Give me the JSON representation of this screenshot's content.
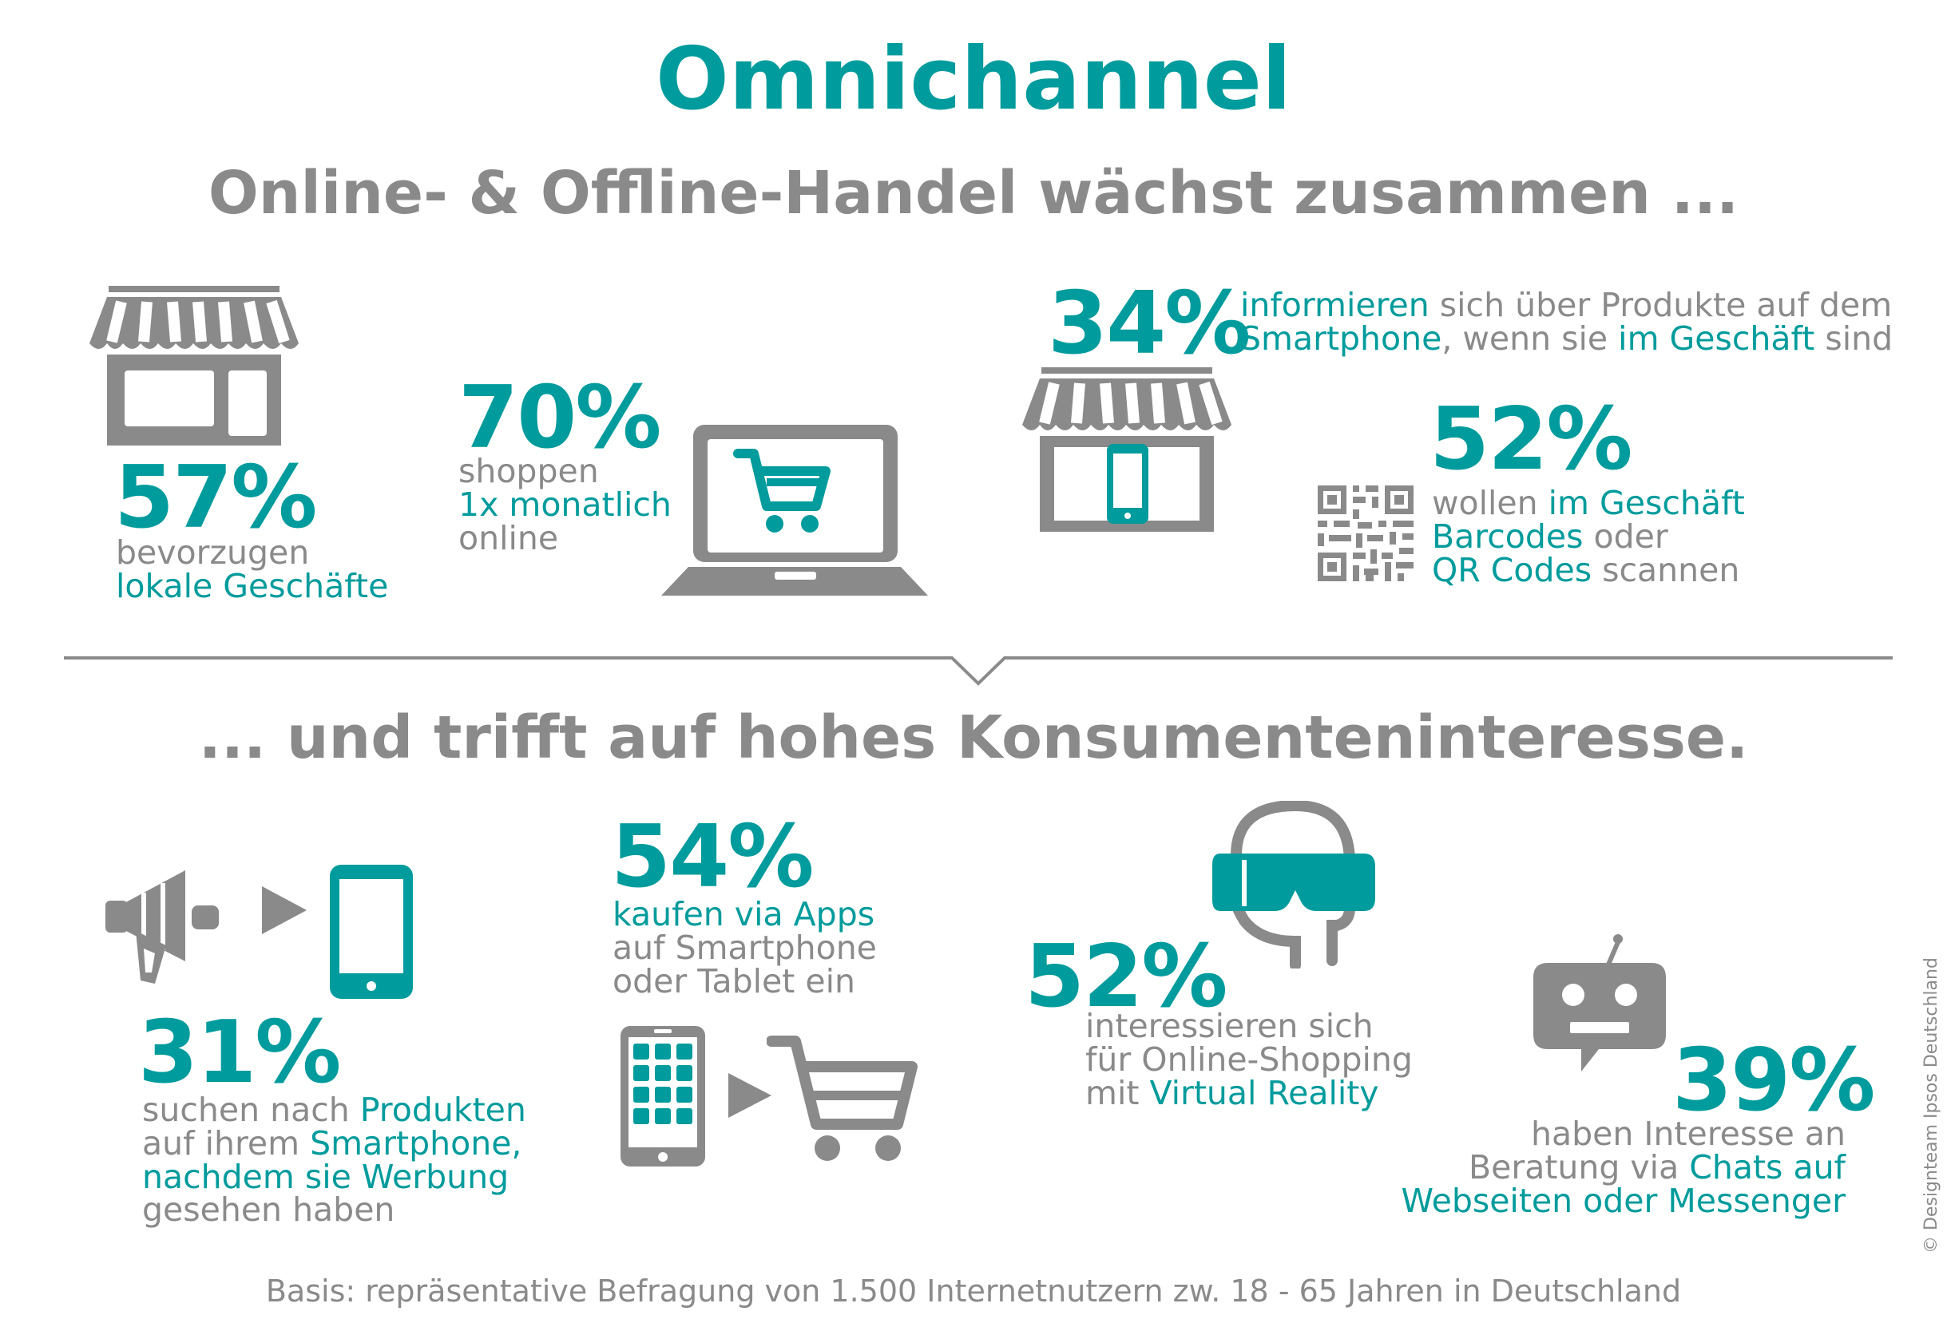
{
  "title": "Omnichannel",
  "headline1": "Online- & Offline-Handel wächst zusammen ...",
  "headline2": "... und trifft auf hohes Konsumenteninteresse.",
  "stats": {
    "s57": {
      "value": "57%",
      "line1": "bevorzugen",
      "line2": "lokale Geschäfte"
    },
    "s70": {
      "value": "70%",
      "line1": "shoppen",
      "line2": "1x  monatlich",
      "line3": "online"
    },
    "s34": {
      "value": "34%",
      "l1a": "informieren",
      "l1b": " sich über Produkte auf dem",
      "l2a": "Smartphone",
      "l2b": ", wenn sie ",
      "l2c": "im Geschäft",
      "l2d": " sind"
    },
    "s52a": {
      "value": "52%",
      "l1a": "wollen ",
      "l1b": "im Geschäft",
      "l2a": "Barcodes",
      "l2b": " oder",
      "l3a": "QR Codes",
      "l3b": " scannen"
    },
    "s31": {
      "value": "31%",
      "l1a": "suchen nach ",
      "l1b": "Produkten",
      "l2a": "auf ihrem ",
      "l2b": "Smartphone,",
      "l3": "nachdem sie Werbung",
      "l4": "gesehen haben"
    },
    "s54": {
      "value": "54%",
      "line1": "kaufen via Apps",
      "line2": "auf Smartphone",
      "line3": "oder Tablet ein"
    },
    "s52b": {
      "value": "52%",
      "line1": "interessieren sich",
      "line2": "für Online-Shopping",
      "l3a": "mit ",
      "l3b": "Virtual Reality"
    },
    "s39": {
      "value": "39%",
      "line1": "haben Interesse an",
      "l2a": "Beratung via ",
      "l2b": "Chats auf",
      "line3": "Webseiten oder Messenger"
    }
  },
  "basis": "Basis: repräsentative Befragung von 1.500 Internetnutzern zw. 18 - 65 Jahren in Deutschland",
  "copyright": "© Designteam Ipsos Deutschland",
  "colors": {
    "teal": "#009b9c",
    "gray": "#8a8a8a"
  },
  "icons": [
    "store-icon",
    "laptop-cart-icon",
    "store-smartphone-icon",
    "qr-code-icon",
    "megaphone-icon",
    "arrow-right-icon",
    "smartphone-icon",
    "tablet-apps-icon",
    "shopping-cart-icon",
    "vr-headset-icon",
    "chatbot-icon"
  ]
}
